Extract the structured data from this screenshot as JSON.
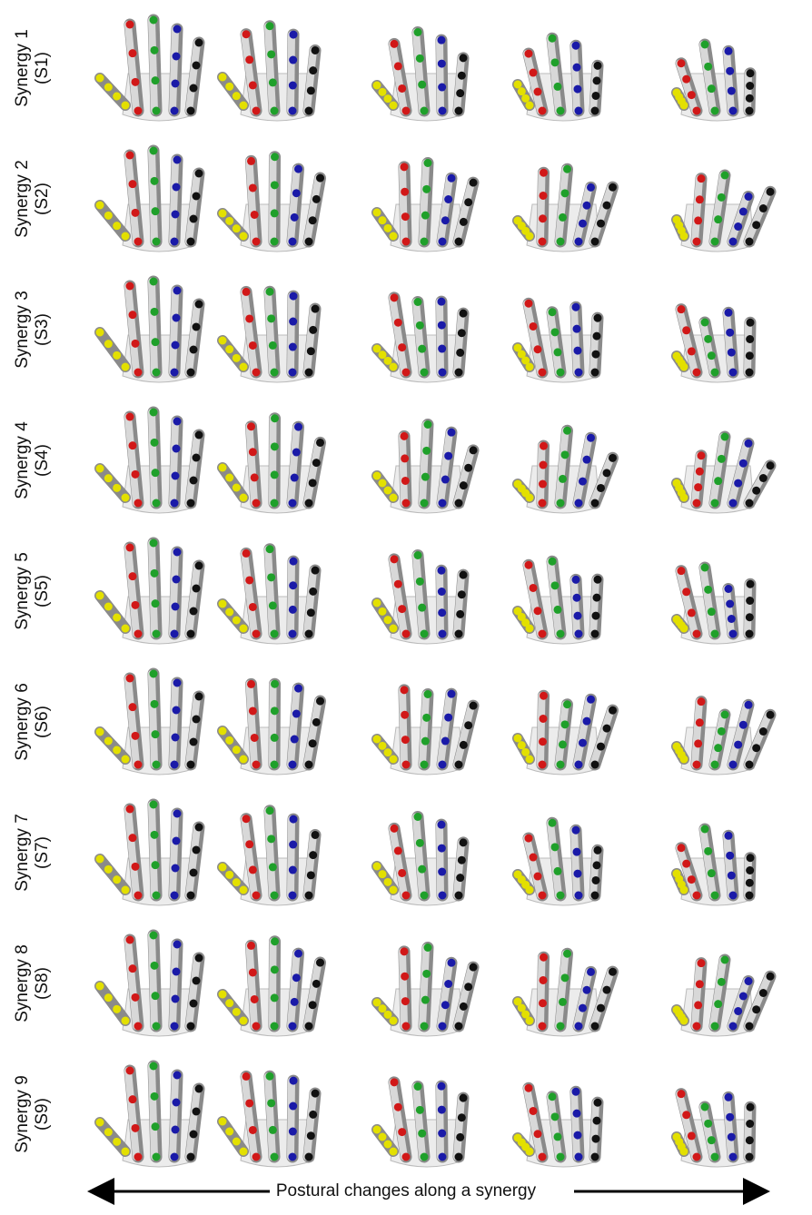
{
  "figure": {
    "rows": [
      {
        "line1": "Synergy 1",
        "line2": "(S1)"
      },
      {
        "line1": "Synergy 2",
        "line2": "(S2)"
      },
      {
        "line1": "Synergy 3",
        "line2": "(S3)"
      },
      {
        "line1": "Synergy 4",
        "line2": "(S4)"
      },
      {
        "line1": "Synergy 5",
        "line2": "(S5)"
      },
      {
        "line1": "Synergy 6",
        "line2": "(S6)"
      },
      {
        "line1": "Synergy 7",
        "line2": "(S7)"
      },
      {
        "line1": "Synergy 8",
        "line2": "(S8)"
      },
      {
        "line1": "Synergy 9",
        "line2": "(S9)"
      }
    ],
    "columns_per_row": 5,
    "marker_colors": {
      "thumb": "#e3e000",
      "index": "#d11818",
      "middle": "#1fa02a",
      "ring": "#1a1aa8",
      "little": "#111111",
      "bone": "#d8d8d8",
      "bone_shadow": "#8a8a8a"
    }
  },
  "footer": {
    "caption": "Postural changes along a synergy"
  }
}
